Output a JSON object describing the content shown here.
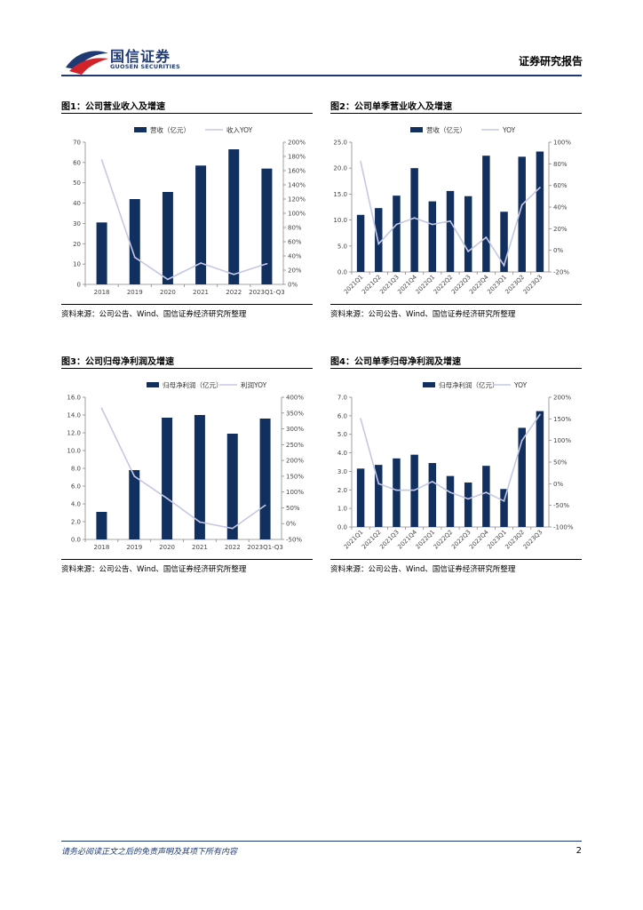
{
  "header": {
    "logo_cn": "国信证券",
    "logo_en": "GUOSEN SECURITIES",
    "report_type": "证券研究报告",
    "colors": {
      "brand_blue": "#1f3a73",
      "brand_red": "#d1232a"
    }
  },
  "figures": [
    {
      "title": "图1：公司营业收入及增速",
      "source": "资料来源：公司公告、Wind、国信证券经济研究所整理"
    },
    {
      "title": "图2：公司单季营业收入及增速",
      "source": "资料来源：公司公告、Wind、国信证券经济研究所整理"
    },
    {
      "title": "图3：公司归母净利润及增速",
      "source": "资料来源：公司公告、Wind、国信证券经济研究所整理"
    },
    {
      "title": "图4：公司单季归母净利润及增速",
      "source": "资料来源：公司公告、Wind、国信证券经济研究所整理"
    }
  ],
  "footer": {
    "disclaimer": "请务必阅读正文之后的免责声明及其项下所有内容",
    "page_number": "2"
  },
  "chart_data": [
    {
      "type": "bar",
      "categories": [
        "2018",
        "2019",
        "2020",
        "2021",
        "2022",
        "2023Q1-Q3"
      ],
      "series": [
        {
          "name": "营收（亿元）",
          "kind": "bar",
          "axis": "left",
          "values": [
            30.5,
            42,
            45.5,
            58.5,
            66.5,
            57
          ]
        },
        {
          "name": "收入YOY",
          "kind": "line",
          "axis": "right",
          "values": [
            175,
            38,
            7,
            30,
            14,
            29
          ]
        }
      ],
      "left_axis": {
        "min": 0,
        "max": 70,
        "step": 10,
        "ticks": [
          "0",
          "10",
          "20",
          "30",
          "40",
          "50",
          "60",
          "70"
        ]
      },
      "right_axis": {
        "min": 0,
        "max": 200,
        "step": 20,
        "ticks": [
          "0%",
          "20%",
          "40%",
          "60%",
          "80%",
          "100%",
          "120%",
          "140%",
          "160%",
          "180%",
          "200%"
        ]
      },
      "bar_color": "#12305f",
      "line_color": "#c5c8e4",
      "legend": "top"
    },
    {
      "type": "bar",
      "categories": [
        "2021Q1",
        "2021Q2",
        "2021Q3",
        "2021Q4",
        "2022Q1",
        "2022Q2",
        "2022Q3",
        "2022Q4",
        "2023Q1",
        "2023Q2",
        "2023Q3"
      ],
      "series": [
        {
          "name": "营收（亿元）",
          "kind": "bar",
          "axis": "left",
          "values": [
            11,
            12.3,
            14.7,
            20,
            13.6,
            15.6,
            14.6,
            22.4,
            11.6,
            22.2,
            23.2
          ]
        },
        {
          "name": "YOY",
          "kind": "line",
          "axis": "right",
          "values": [
            82,
            6,
            24,
            30,
            24,
            27,
            -1,
            12,
            -14,
            42,
            58
          ]
        }
      ],
      "left_axis": {
        "min": 0,
        "max": 25,
        "step": 5,
        "ticks": [
          "0.0",
          "5.0",
          "10.0",
          "15.0",
          "20.0",
          "25.0"
        ]
      },
      "right_axis": {
        "min": -20,
        "max": 100,
        "step": 20,
        "ticks": [
          "-20%",
          "0%",
          "20%",
          "40%",
          "60%",
          "80%",
          "100%"
        ]
      },
      "bar_color": "#12305f",
      "line_color": "#c5c8e4",
      "legend": "top"
    },
    {
      "type": "bar",
      "categories": [
        "2018",
        "2019",
        "2020",
        "2021",
        "2022",
        "2023Q1-Q3"
      ],
      "series": [
        {
          "name": "归母净利润（亿元）",
          "kind": "bar",
          "axis": "left",
          "values": [
            3.1,
            7.8,
            13.7,
            14.0,
            11.9,
            13.6
          ]
        },
        {
          "name": "利润YOY",
          "kind": "line",
          "axis": "right",
          "values": [
            365,
            150,
            80,
            5,
            -15,
            58
          ]
        }
      ],
      "left_axis": {
        "min": 0,
        "max": 16,
        "step": 2,
        "ticks": [
          "0.0",
          "2.0",
          "4.0",
          "6.0",
          "8.0",
          "10.0",
          "12.0",
          "14.0",
          "16.0"
        ]
      },
      "right_axis": {
        "min": -50,
        "max": 400,
        "step": 50,
        "ticks": [
          "-50%",
          "0%",
          "50%",
          "100%",
          "150%",
          "200%",
          "250%",
          "300%",
          "350%",
          "400%"
        ]
      },
      "bar_color": "#12305f",
      "line_color": "#c5c8e4",
      "legend": "top"
    },
    {
      "type": "bar",
      "categories": [
        "2021Q1",
        "2021Q2",
        "2021Q3",
        "2021Q4",
        "2022Q1",
        "2022Q2",
        "2022Q3",
        "2022Q4",
        "2023Q1",
        "2023Q2",
        "2023Q3"
      ],
      "series": [
        {
          "name": "归母净利润（亿元）",
          "kind": "bar",
          "axis": "left",
          "values": [
            3.15,
            3.35,
            3.7,
            3.9,
            3.45,
            2.75,
            2.4,
            3.3,
            2.05,
            5.35,
            6.25
          ]
        },
        {
          "name": "YOY",
          "kind": "line",
          "axis": "right",
          "values": [
            150,
            0,
            -15,
            -15,
            5,
            -20,
            -35,
            -20,
            -40,
            100,
            160
          ]
        }
      ],
      "left_axis": {
        "min": 0,
        "max": 7,
        "step": 1,
        "ticks": [
          "0.0",
          "1.0",
          "2.0",
          "3.0",
          "4.0",
          "5.0",
          "6.0",
          "7.0"
        ]
      },
      "right_axis": {
        "min": -100,
        "max": 200,
        "step": 50,
        "ticks": [
          "-100%",
          "-50%",
          "0%",
          "50%",
          "100%",
          "150%",
          "200%"
        ]
      },
      "bar_color": "#12305f",
      "line_color": "#c5c8e4",
      "legend": "top"
    }
  ]
}
